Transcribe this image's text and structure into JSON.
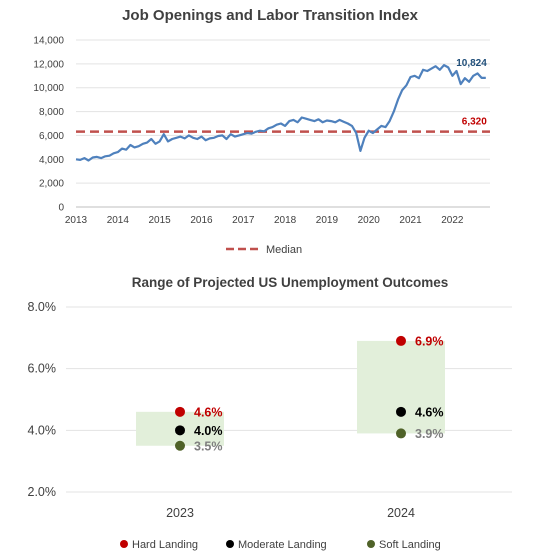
{
  "chart_data": [
    {
      "type": "line",
      "title": "Job Openings and Labor Transition Index",
      "ylim": [
        0,
        14000
      ],
      "yticks": [
        "0",
        "2,000",
        "4,000",
        "6,000",
        "8,000",
        "10,000",
        "12,000",
        "14,000"
      ],
      "xlim": [
        2013,
        2022.9
      ],
      "xticks": [
        "2013",
        "2014",
        "2015",
        "2016",
        "2017",
        "2018",
        "2019",
        "2020",
        "2021",
        "2022"
      ],
      "grid": true,
      "series": [
        {
          "color": "#4f81bd",
          "x": [
            2013.0,
            2013.1,
            2013.2,
            2013.3,
            2013.4,
            2013.5,
            2013.6,
            2013.7,
            2013.8,
            2013.9,
            2014.0,
            2014.1,
            2014.2,
            2014.3,
            2014.4,
            2014.5,
            2014.6,
            2014.7,
            2014.8,
            2014.9,
            2015.0,
            2015.1,
            2015.2,
            2015.3,
            2015.4,
            2015.5,
            2015.6,
            2015.7,
            2015.8,
            2015.9,
            2016.0,
            2016.1,
            2016.2,
            2016.3,
            2016.4,
            2016.5,
            2016.6,
            2016.7,
            2016.8,
            2016.9,
            2017.0,
            2017.1,
            2017.2,
            2017.3,
            2017.4,
            2017.5,
            2017.6,
            2017.7,
            2017.8,
            2017.9,
            2018.0,
            2018.1,
            2018.2,
            2018.3,
            2018.4,
            2018.5,
            2018.6,
            2018.7,
            2018.8,
            2018.9,
            2019.0,
            2019.1,
            2019.2,
            2019.3,
            2019.4,
            2019.5,
            2019.6,
            2019.7,
            2019.8,
            2019.9,
            2020.0,
            2020.1,
            2020.2,
            2020.3,
            2020.4,
            2020.5,
            2020.6,
            2020.7,
            2020.8,
            2020.9,
            2021.0,
            2021.1,
            2021.2,
            2021.3,
            2021.4,
            2021.5,
            2021.6,
            2021.7,
            2021.8,
            2021.9,
            2022.0,
            2022.1,
            2022.2,
            2022.3,
            2022.4,
            2022.5,
            2022.6,
            2022.7,
            2022.8
          ],
          "y": [
            4000,
            3950,
            4100,
            3900,
            4150,
            4200,
            4100,
            4250,
            4300,
            4500,
            4600,
            4900,
            4800,
            5200,
            5000,
            5100,
            5300,
            5400,
            5700,
            5300,
            5500,
            6100,
            5500,
            5700,
            5800,
            5900,
            5750,
            6000,
            5800,
            5700,
            5900,
            5600,
            5750,
            5800,
            5950,
            6000,
            5700,
            6100,
            5900,
            6000,
            6100,
            6200,
            6150,
            6300,
            6400,
            6350,
            6600,
            6700,
            6900,
            7000,
            6800,
            7200,
            7300,
            7100,
            7500,
            7400,
            7300,
            7200,
            7350,
            7100,
            7250,
            7200,
            7100,
            7300,
            7150,
            7000,
            6800,
            6200,
            4700,
            5800,
            6400,
            6200,
            6500,
            6800,
            6700,
            7200,
            8000,
            9000,
            9800,
            10200,
            10900,
            11000,
            10800,
            11500,
            11400,
            11600,
            11800,
            11500,
            11900,
            11700,
            11000,
            11400,
            10300,
            10800,
            10500,
            11000,
            11200,
            10824,
            10824
          ]
        }
      ],
      "reference_line": {
        "name": "Median",
        "value": 6320,
        "color": "#c0504d"
      },
      "annotations": [
        "10,824",
        "6,320"
      ],
      "legend": {
        "position": "bottom",
        "entries": [
          "Median"
        ]
      }
    },
    {
      "type": "range",
      "title": "Range of Projected US Unemployment Outcomes",
      "ylim": [
        2.0,
        8.0
      ],
      "yticks": [
        "2.0%",
        "4.0%",
        "6.0%",
        "8.0%"
      ],
      "categories": [
        "2023",
        "2024"
      ],
      "ranges": [
        {
          "low": 3.5,
          "high": 4.6
        },
        {
          "low": 3.9,
          "high": 6.9
        }
      ],
      "series": [
        {
          "name": "Hard Landing",
          "color": "#c00000",
          "values": [
            4.6,
            6.9
          ],
          "labels": [
            "4.6%",
            "6.9%"
          ]
        },
        {
          "name": "Moderate Landing",
          "color": "#000000",
          "values": [
            4.0,
            4.6
          ],
          "labels": [
            "4.0%",
            "4.6%"
          ]
        },
        {
          "name": "Soft Landing",
          "color": "#4f6228",
          "values": [
            3.5,
            3.9
          ],
          "labels": [
            "3.5%",
            "3.9%"
          ]
        }
      ],
      "grid": true,
      "legend": {
        "position": "bottom"
      }
    }
  ]
}
